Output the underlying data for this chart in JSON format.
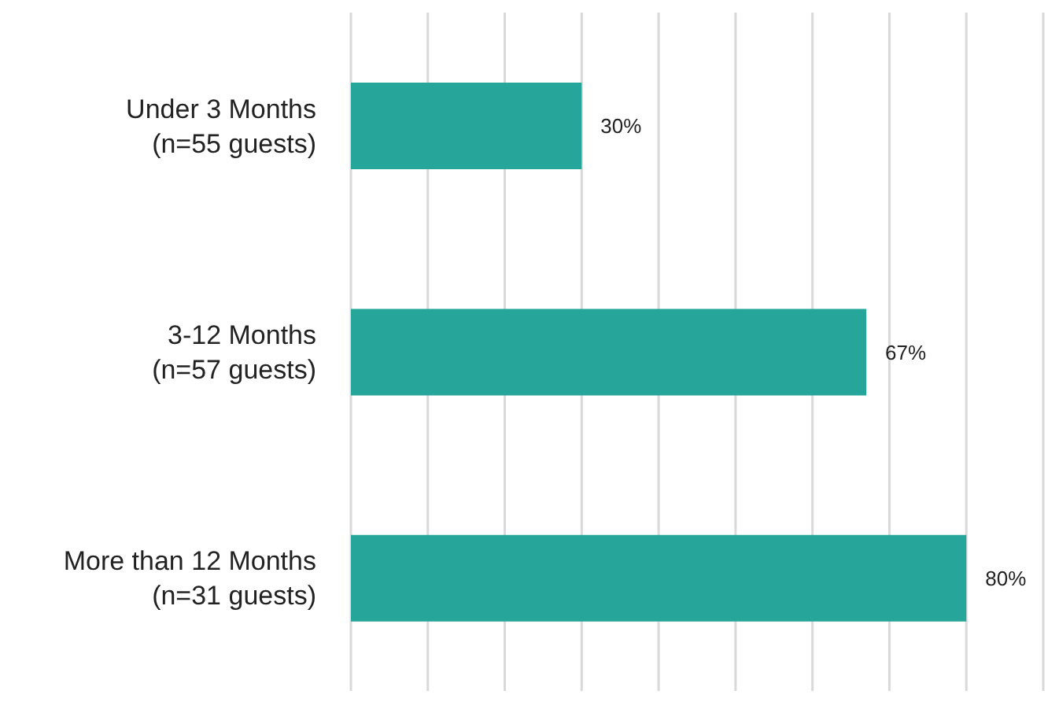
{
  "chart_data": {
    "type": "bar",
    "orientation": "horizontal",
    "categories": [
      "Under 3 Months\n(n=55 guests)",
      "3-12 Months\n(n=57 guests)",
      "More than 12 Months\n(n=31 guests)"
    ],
    "values": [
      30,
      67,
      80
    ],
    "color": "#26a69a",
    "value_labels": [
      "30%",
      "67%",
      "80%"
    ],
    "xlim": [
      0,
      90
    ],
    "grid": "x",
    "tick_labels": "y"
  }
}
